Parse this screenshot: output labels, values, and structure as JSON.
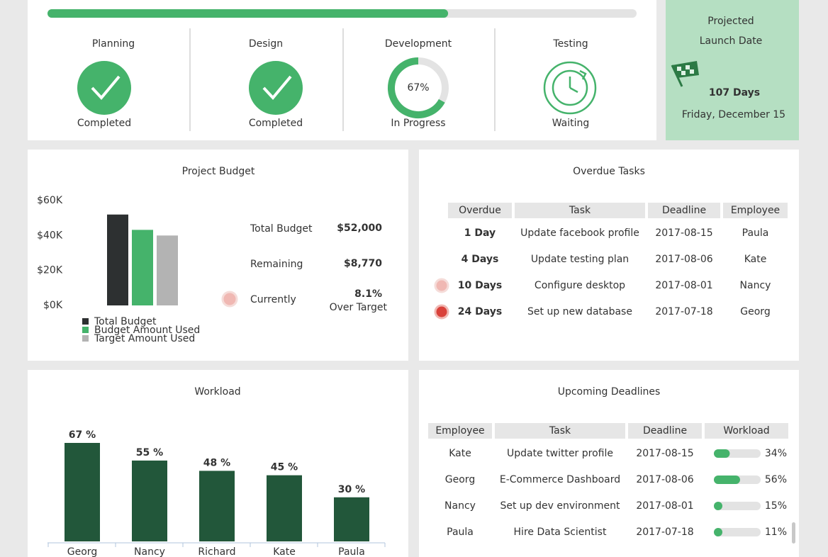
{
  "progress": {
    "value": 68
  },
  "phases": [
    {
      "name": "Planning",
      "status": "Completed"
    },
    {
      "name": "Design",
      "status": "Completed"
    },
    {
      "name": "Development",
      "percent": {
        "value": 67,
        "label": "67%"
      },
      "status": "In Progress"
    },
    {
      "name": "Testing",
      "status": "Waiting"
    }
  ],
  "launch": {
    "title_lines": [
      "Projected",
      "Launch Date"
    ],
    "days": "107 Days",
    "date": "Friday, December 15"
  },
  "budget": {
    "title": "Project Budget",
    "chart": {
      "type": "bar",
      "series": [
        {
          "name": "Total Budget",
          "color": "#2d3031",
          "values": [
            52000
          ]
        },
        {
          "name": "Budget Amount Used",
          "color": "#45b36b",
          "values": [
            43230
          ]
        },
        {
          "name": "Target Amount Used",
          "color": "#b3b3b3",
          "values": [
            40000
          ]
        }
      ],
      "ylim": [
        0,
        60000
      ],
      "yticks": [
        {
          "value": 0,
          "label": "$0K"
        },
        {
          "value": 20000,
          "label": "$20K"
        },
        {
          "value": 40000,
          "label": "$40K"
        },
        {
          "value": 60000,
          "label": "$60K"
        }
      ]
    },
    "stats": [
      {
        "label": "Total Budget",
        "value": "$52,000"
      },
      {
        "label": "Remaining",
        "value": "$8,770"
      },
      {
        "label": "Currently",
        "value": "8.1%",
        "note": "Over Target"
      }
    ]
  },
  "overdue": {
    "title": "Overdue Tasks",
    "columns": [
      "Overdue",
      "Task",
      "Deadline",
      "Employee"
    ],
    "rows": [
      [
        "1 Day",
        "Update facebook profile",
        "2017-08-15",
        "Paula"
      ],
      [
        "4 Days",
        "Update testing plan",
        "2017-08-06",
        "Kate"
      ],
      [
        "10 Days",
        "Configure desktop",
        "2017-08-01",
        "Nancy"
      ],
      [
        "24 Days",
        "Set up new database",
        "2017-07-18",
        "Georg"
      ]
    ]
  },
  "workload": {
    "title": "Workload",
    "chart": {
      "type": "bar",
      "categories": [
        "Georg",
        "Nancy",
        "Richard",
        "Kate",
        "Paula"
      ],
      "values": [
        67,
        55,
        48,
        45,
        30
      ],
      "value_labels": [
        "67 %",
        "55 %",
        "48 %",
        "45 %",
        "30 %"
      ],
      "color": "#22573a"
    }
  },
  "upcoming": {
    "title": "Upcoming Deadlines",
    "columns": [
      "Employee",
      "Task",
      "Deadline",
      "Workload"
    ],
    "rows": [
      {
        "employee": "Kate",
        "task": "Update twitter profile",
        "deadline": "2017-08-15",
        "workload": {
          "value": 34,
          "label": "34%"
        }
      },
      {
        "employee": "Georg",
        "task": "E-Commerce Dashboard",
        "deadline": "2017-08-06",
        "workload": {
          "value": 56,
          "label": "56%"
        }
      },
      {
        "employee": "Nancy",
        "task": "Set up dev environment",
        "deadline": "2017-08-01",
        "workload": {
          "value": 15,
          "label": "15%"
        }
      },
      {
        "employee": "Paula",
        "task": "Hire Data Scientist",
        "deadline": "2017-07-18",
        "workload": {
          "value": 11,
          "label": "11%"
        }
      }
    ]
  }
}
